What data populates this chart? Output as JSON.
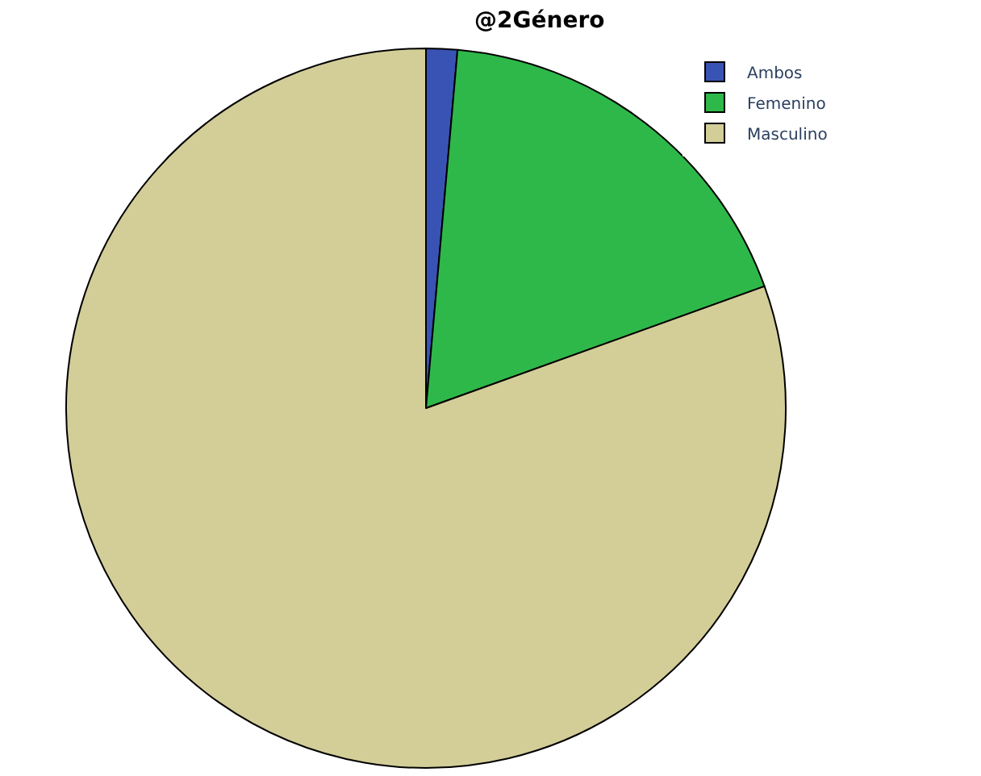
{
  "chart_data": {
    "type": "pie",
    "title": "@2Género",
    "categories": [
      "Ambos",
      "Femenino",
      "Masculino"
    ],
    "values": [
      1.4,
      18.1,
      80.5
    ],
    "colors": [
      "#3953b4",
      "#2fb84a",
      "#d3cd98"
    ],
    "legend": "top right"
  }
}
